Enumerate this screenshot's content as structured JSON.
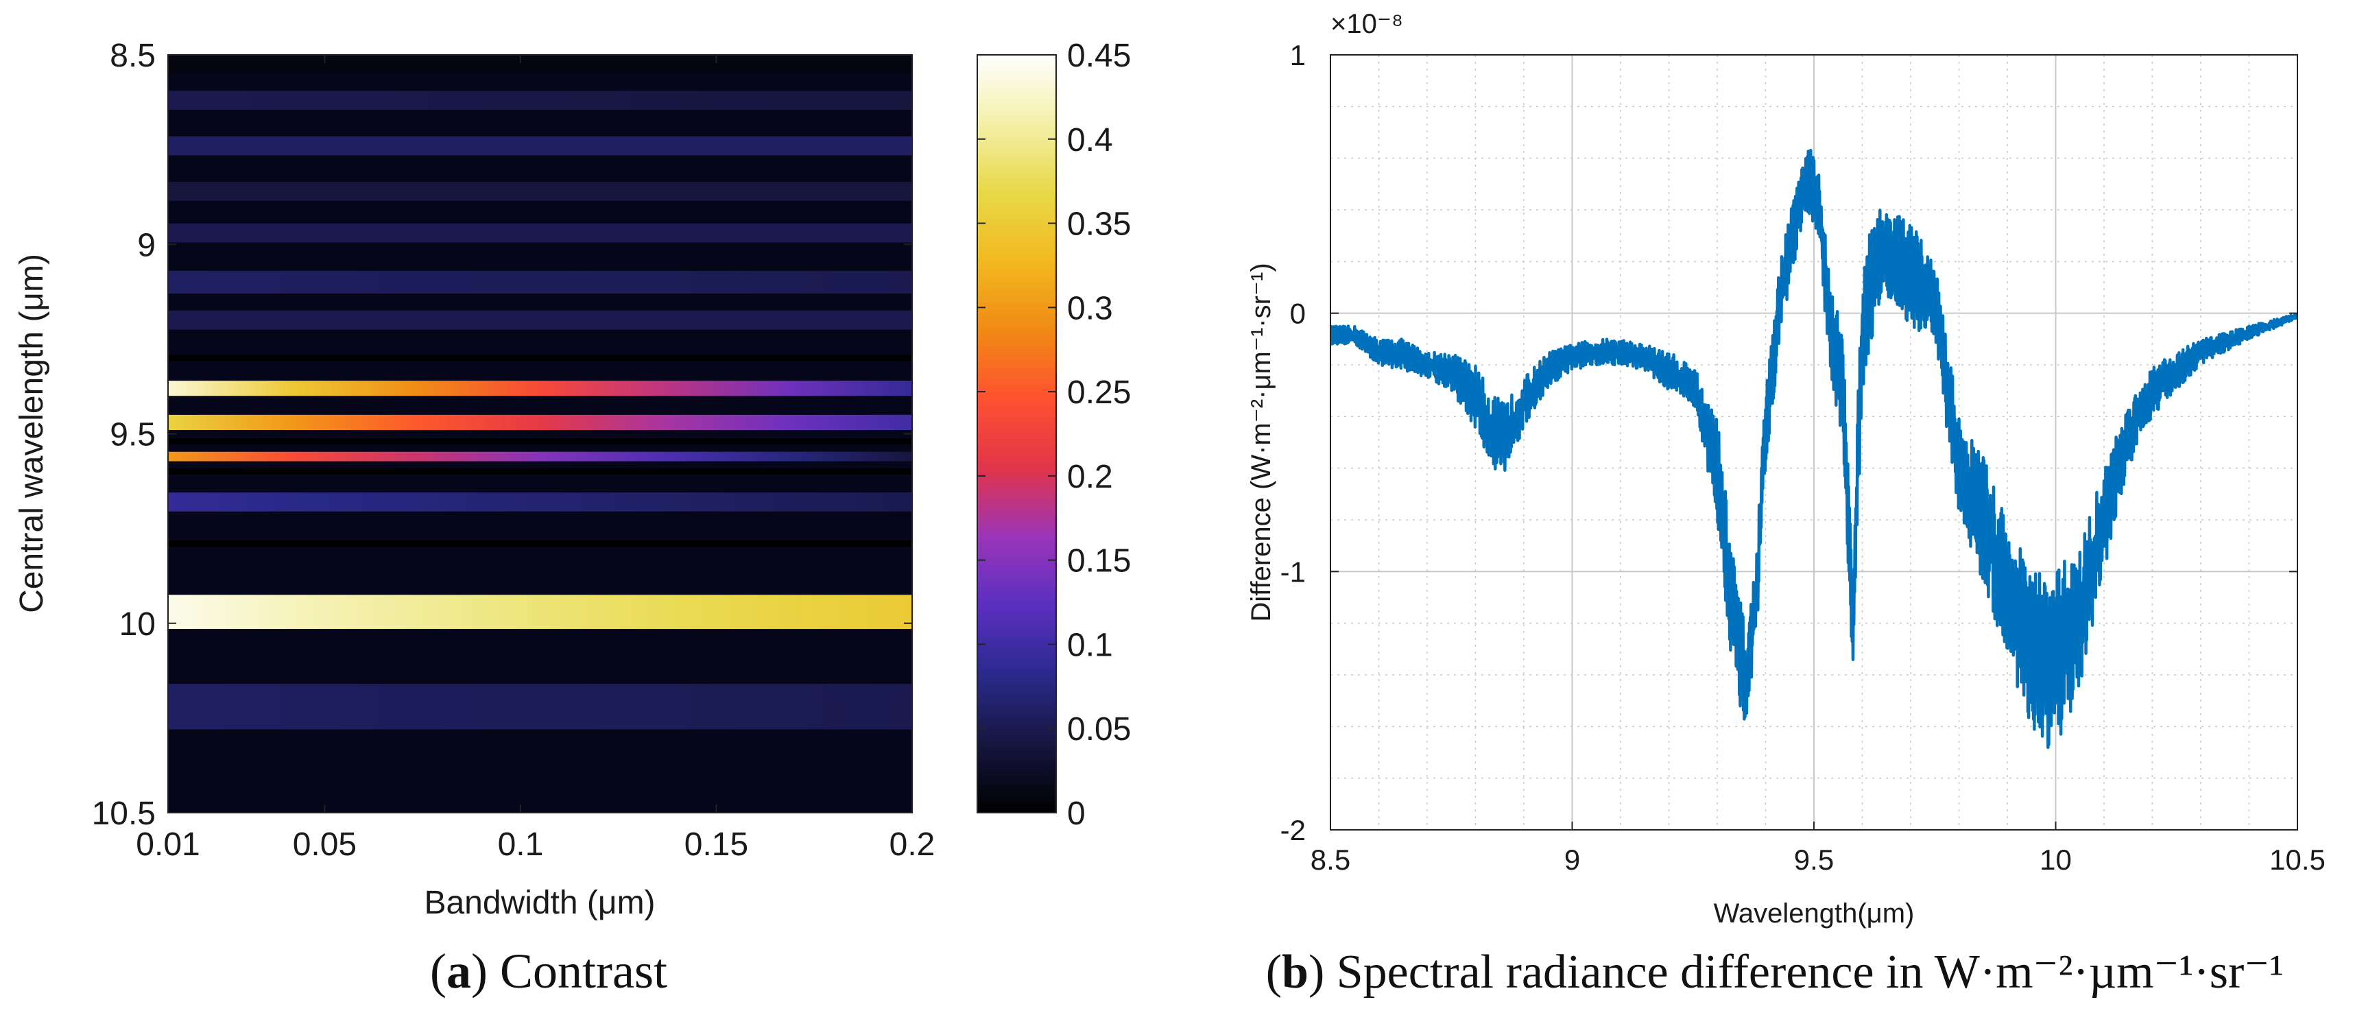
{
  "colors": {
    "line": "#0072BD",
    "grid": "#c8c8c8",
    "axis": "#222222",
    "colormap": [
      "#000000",
      "#161640",
      "#2a2a8c",
      "#5a2fc0",
      "#9a35b8",
      "#e0354a",
      "#ff5030",
      "#f08a15",
      "#f2b820",
      "#e8d848",
      "#f3f0a8",
      "#ffffff"
    ]
  },
  "chart_data": [
    {
      "id": "a",
      "type": "heatmap",
      "caption": {
        "label": "a",
        "text": "Contrast"
      },
      "xlabel": "Bandwidth (μm)",
      "ylabel": "Central wavelength (μm)",
      "xlim": [
        0.01,
        0.2
      ],
      "ylim": [
        8.5,
        10.5
      ],
      "y_reversed": true,
      "xticks": [
        0.01,
        0.05,
        0.1,
        0.15,
        0.2
      ],
      "xtick_labels": [
        "0.01",
        "0.05",
        "0.1",
        "0.15",
        "0.2"
      ],
      "yticks": [
        8.5,
        9,
        9.5,
        10,
        10.5
      ],
      "ytick_labels": [
        "8.5",
        "9",
        "9.5",
        "10",
        "10.5"
      ],
      "colorbar": {
        "min": 0,
        "max": 0.45,
        "ticks": [
          0,
          0.05,
          0.1,
          0.15,
          0.2,
          0.25,
          0.3,
          0.35,
          0.4,
          0.45
        ],
        "tick_labels": [
          "0",
          "0.05",
          "0.1",
          "0.15",
          "0.2",
          "0.25",
          "0.3",
          "0.35",
          "0.4",
          "0.45"
        ]
      },
      "bands": [
        {
          "center": 8.53,
          "width": 0.04,
          "peak": 0.01,
          "tail": 0.01
        },
        {
          "center": 8.62,
          "width": 0.05,
          "peak": 0.05,
          "tail": 0.04
        },
        {
          "center": 8.74,
          "width": 0.05,
          "peak": 0.06,
          "tail": 0.06
        },
        {
          "center": 8.86,
          "width": 0.05,
          "peak": 0.04,
          "tail": 0.04
        },
        {
          "center": 8.97,
          "width": 0.05,
          "peak": 0.05,
          "tail": 0.05
        },
        {
          "center": 9.1,
          "width": 0.06,
          "peak": 0.06,
          "tail": 0.05
        },
        {
          "center": 9.2,
          "width": 0.05,
          "peak": 0.05,
          "tail": 0.05
        },
        {
          "center": 9.38,
          "width": 0.04,
          "peak": 0.43,
          "tail": 0.09
        },
        {
          "center": 9.47,
          "width": 0.04,
          "peak": 0.36,
          "tail": 0.1
        },
        {
          "center": 9.56,
          "width": 0.025,
          "peak": 0.3,
          "tail": 0.04
        },
        {
          "center": 9.68,
          "width": 0.05,
          "peak": 0.09,
          "tail": 0.05
        },
        {
          "center": 9.97,
          "width": 0.09,
          "peak": 0.44,
          "tail": 0.35
        },
        {
          "center": 10.22,
          "width": 0.12,
          "peak": 0.06,
          "tail": 0.05
        }
      ],
      "dark_lines": [
        9.3,
        9.52,
        9.6,
        9.79
      ]
    },
    {
      "id": "b",
      "type": "line",
      "caption": {
        "label": "b",
        "text": "Spectral radiance difference in W·m⁻²·µm⁻¹·sr⁻¹"
      },
      "xlabel": "Wavelength(μm)",
      "ylabel": "Difference (W·m⁻²·μm⁻¹·sr⁻¹)",
      "y_multiplier": "×10⁻⁸",
      "xlim": [
        8.5,
        10.5
      ],
      "ylim": [
        -2,
        1
      ],
      "xticks": [
        8.5,
        9,
        9.5,
        10,
        10.5
      ],
      "xtick_labels": [
        "8.5",
        "9",
        "9.5",
        "10",
        "10.5"
      ],
      "yticks": [
        -2,
        -1,
        0,
        1
      ],
      "ytick_labels": [
        "-2",
        "-1",
        "0",
        "1"
      ],
      "grid": true,
      "minor_grid": true,
      "series": [
        {
          "name": "Difference",
          "x": [
            8.5,
            8.55,
            8.6,
            8.65,
            8.7,
            8.75,
            8.8,
            8.83,
            8.86,
            8.9,
            8.95,
            9.0,
            9.05,
            9.1,
            9.15,
            9.2,
            9.25,
            9.3,
            9.33,
            9.36,
            9.38,
            9.4,
            9.43,
            9.46,
            9.49,
            9.51,
            9.53,
            9.56,
            9.58,
            9.6,
            9.63,
            9.66,
            9.7,
            9.75,
            9.8,
            9.85,
            9.9,
            9.95,
            10.0,
            10.02,
            10.05,
            10.1,
            10.15,
            10.2,
            10.3,
            10.4,
            10.5
          ],
          "y_upper": [
            -0.05,
            -0.05,
            -0.1,
            -0.1,
            -0.15,
            -0.15,
            -0.2,
            -0.3,
            -0.35,
            -0.25,
            -0.15,
            -0.12,
            -0.1,
            -0.1,
            -0.12,
            -0.15,
            -0.2,
            -0.4,
            -0.9,
            -1.25,
            -0.95,
            -0.3,
            0.2,
            0.5,
            0.65,
            0.55,
            0.2,
            -0.1,
            -1.0,
            0.2,
            0.42,
            0.4,
            0.35,
            0.2,
            -0.4,
            -0.55,
            -0.8,
            -1.0,
            -1.0,
            -0.95,
            -0.9,
            -0.6,
            -0.35,
            -0.2,
            -0.1,
            -0.05,
            0.0
          ],
          "y_lower": [
            -0.12,
            -0.12,
            -0.2,
            -0.22,
            -0.25,
            -0.3,
            -0.45,
            -0.6,
            -0.62,
            -0.45,
            -0.3,
            -0.22,
            -0.2,
            -0.2,
            -0.22,
            -0.3,
            -0.35,
            -0.8,
            -1.35,
            -1.65,
            -1.3,
            -0.6,
            -0.1,
            0.2,
            0.38,
            0.3,
            -0.2,
            -0.5,
            -1.45,
            -0.3,
            0.0,
            0.05,
            -0.05,
            -0.1,
            -0.8,
            -1.05,
            -1.35,
            -1.6,
            -1.8,
            -1.6,
            -1.45,
            -1.0,
            -0.6,
            -0.4,
            -0.2,
            -0.1,
            -0.02
          ]
        }
      ]
    }
  ]
}
